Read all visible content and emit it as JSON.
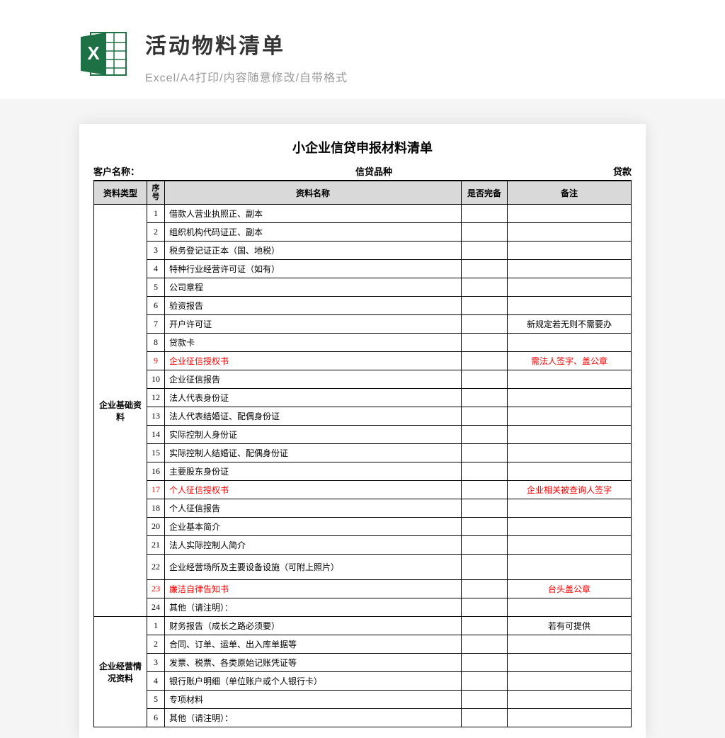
{
  "header": {
    "title": "活动物料清单",
    "subtitle": "Excel/A4打印/内容随意修改/自带格式"
  },
  "icon": {
    "bg_color": "#ffffff",
    "accent_color": "#1e7145",
    "letter": "X"
  },
  "document": {
    "title": "小企业信贷申报材料清单",
    "info_labels": {
      "customer": "客户名称：",
      "product": "信贷品种",
      "loan": "贷款"
    },
    "columns": {
      "type": "资料类型",
      "seq": "序号",
      "name": "资料名称",
      "complete": "是否完备",
      "remark": "备注"
    },
    "sections": [
      {
        "type_label": "企业基础资料",
        "rows": [
          {
            "seq": "1",
            "name": "借款人营业执照正、副本",
            "remark": "",
            "red": false
          },
          {
            "seq": "2",
            "name": "组织机构代码证正、副本",
            "remark": "",
            "red": false
          },
          {
            "seq": "3",
            "name": "税务登记证正本（国、地税）",
            "remark": "",
            "red": false
          },
          {
            "seq": "4",
            "name": "特种行业经营许可证（如有）",
            "remark": "",
            "red": false
          },
          {
            "seq": "5",
            "name": "公司章程",
            "remark": "",
            "red": false
          },
          {
            "seq": "6",
            "name": "验资报告",
            "remark": "",
            "red": false
          },
          {
            "seq": "7",
            "name": "开户许可证",
            "remark": "新规定若无则不需要办",
            "red": false
          },
          {
            "seq": "8",
            "name": "贷款卡",
            "remark": "",
            "red": false
          },
          {
            "seq": "9",
            "name": "企业征信授权书",
            "remark": "需法人签字、盖公章",
            "red": true
          },
          {
            "seq": "10",
            "name": "企业征信报告",
            "remark": "",
            "red": false
          },
          {
            "seq": "12",
            "name": "法人代表身份证",
            "remark": "",
            "red": false
          },
          {
            "seq": "13",
            "name": "法人代表结婚证、配偶身份证",
            "remark": "",
            "red": false
          },
          {
            "seq": "14",
            "name": "实际控制人身份证",
            "remark": "",
            "red": false
          },
          {
            "seq": "15",
            "name": "实际控制人结婚证、配偶身份证",
            "remark": "",
            "red": false
          },
          {
            "seq": "16",
            "name": "主要股东身份证",
            "remark": "",
            "red": false
          },
          {
            "seq": "17",
            "name": "个人征信授权书",
            "remark": "企业相关被查询人签字",
            "red": true
          },
          {
            "seq": "18",
            "name": "个人征信报告",
            "remark": "",
            "red": false
          },
          {
            "seq": "20",
            "name": "企业基本简介",
            "remark": "",
            "red": false
          },
          {
            "seq": "21",
            "name": "法人实际控制人简介",
            "remark": "",
            "red": false
          },
          {
            "seq": "22",
            "name": "企业经营场所及主要设备设施（可附上照片）",
            "remark": "",
            "red": false,
            "tall": true
          },
          {
            "seq": "23",
            "name": "廉洁自律告知书",
            "remark": "台头盖公章",
            "red": true
          },
          {
            "seq": "24",
            "name": "其他（请注明）：",
            "remark": "",
            "red": false
          }
        ]
      },
      {
        "type_label": "企业经营情况资料",
        "rows": [
          {
            "seq": "1",
            "name": "财务报告（成长之路必须要）",
            "remark": "若有可提供",
            "red": false
          },
          {
            "seq": "2",
            "name": "合同、订单、运单、出入库单据等",
            "remark": "",
            "red": false
          },
          {
            "seq": "3",
            "name": "发票、税票、各类原始记账凭证等",
            "remark": "",
            "red": false
          },
          {
            "seq": "4",
            "name": "银行账户明细（单位账户或个人银行卡）",
            "remark": "",
            "red": false
          },
          {
            "seq": "5",
            "name": "专项材料",
            "remark": "",
            "red": false
          },
          {
            "seq": "6",
            "name": "其他（请注明）：",
            "remark": "",
            "red": false
          }
        ]
      }
    ]
  }
}
